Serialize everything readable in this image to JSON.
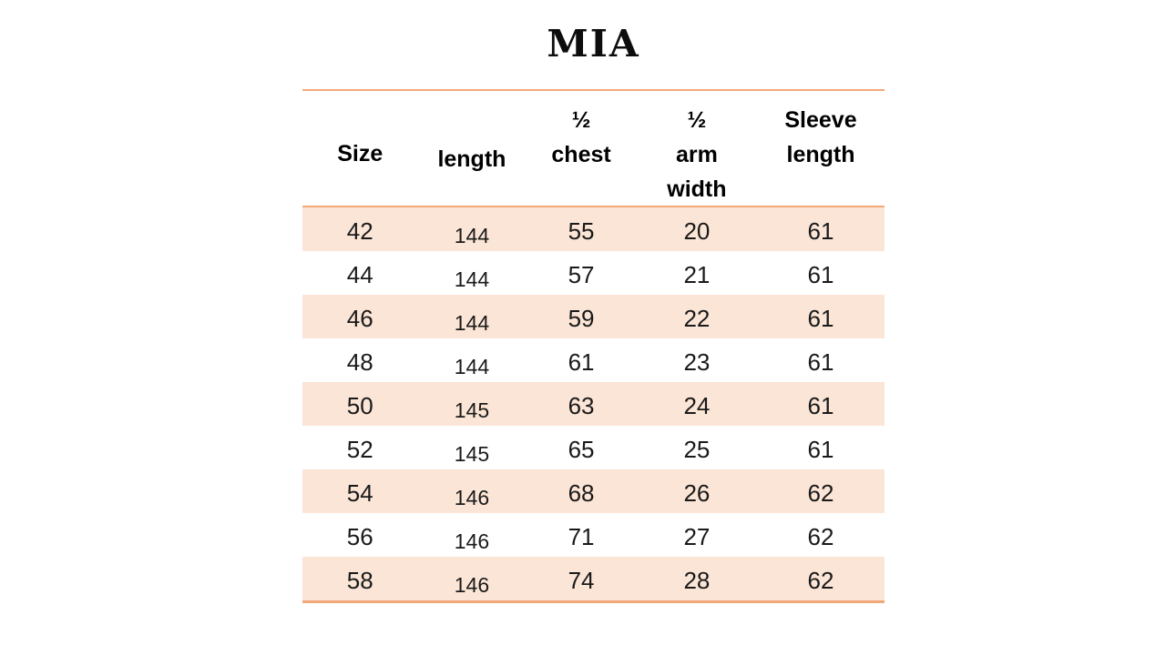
{
  "title": "MIA",
  "colors": {
    "stripe": "#FBE5D6",
    "line": "#F2A97A",
    "text": "#1A1A1A"
  },
  "table": {
    "headers": [
      "Size",
      "length",
      "½\nchest",
      "½\narm\nwidth",
      "Sleeve\nlength"
    ],
    "rows": [
      [
        "42",
        "144",
        "55",
        "20",
        "61"
      ],
      [
        "44",
        "144",
        "57",
        "21",
        "61"
      ],
      [
        "46",
        "144",
        "59",
        "22",
        "61"
      ],
      [
        "48",
        "144",
        "61",
        "23",
        "61"
      ],
      [
        "50",
        "145",
        "63",
        "24",
        "61"
      ],
      [
        "52",
        "145",
        "65",
        "25",
        "61"
      ],
      [
        "54",
        "146",
        "68",
        "26",
        "62"
      ],
      [
        "56",
        "146",
        "71",
        "27",
        "62"
      ],
      [
        "58",
        "146",
        "74",
        "28",
        "62"
      ]
    ]
  }
}
